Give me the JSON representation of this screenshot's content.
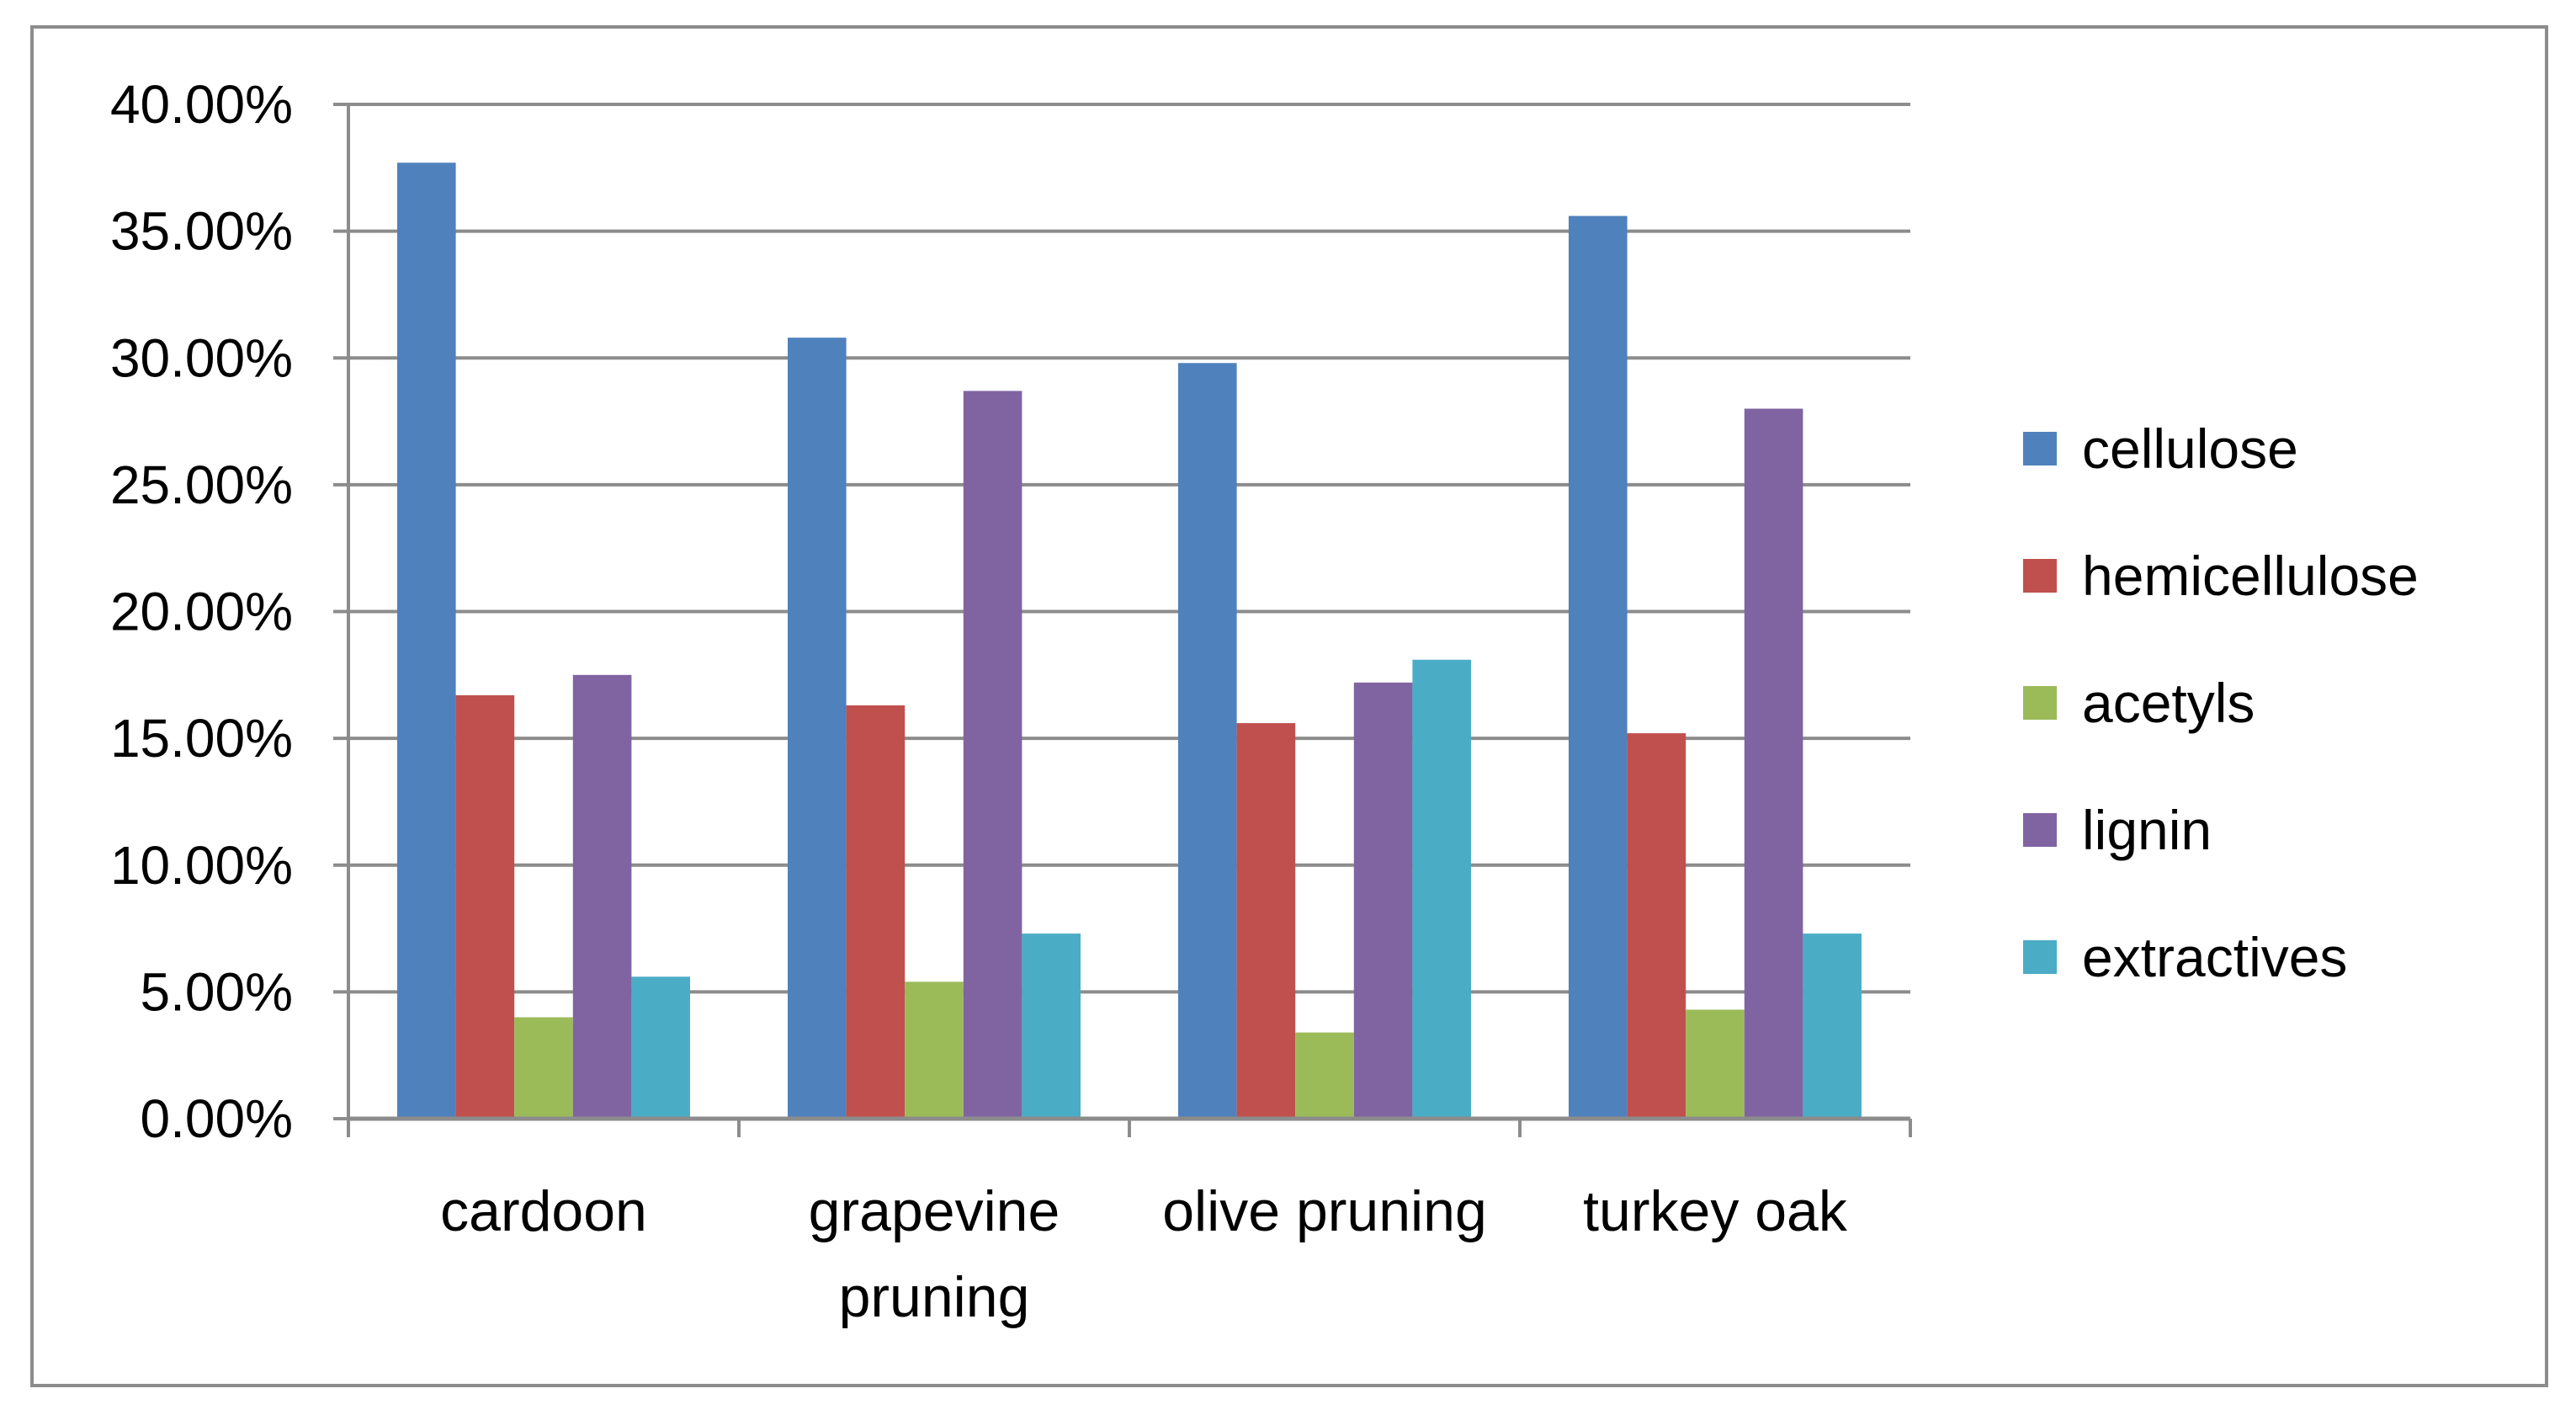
{
  "chart_data": {
    "type": "bar",
    "title": "",
    "xlabel": "",
    "ylabel": "",
    "ylim": [
      0,
      0.4
    ],
    "y_tick_step": 0.05,
    "y_tick_format": "percent_2dp",
    "y_ticks": [
      "0.00%",
      "5.00%",
      "10.00%",
      "15.00%",
      "20.00%",
      "25.00%",
      "30.00%",
      "35.00%",
      "40.00%"
    ],
    "grid": true,
    "legend_position": "right",
    "categories": [
      [
        "cardoon"
      ],
      [
        "grapevine",
        "pruning"
      ],
      [
        "olive pruning"
      ],
      [
        "turkey oak"
      ]
    ],
    "series": [
      {
        "name": "cellulose",
        "color": "#4F81BD",
        "values": [
          0.377,
          0.308,
          0.298,
          0.356
        ]
      },
      {
        "name": "hemicellulose",
        "color": "#C0504D",
        "values": [
          0.167,
          0.163,
          0.156,
          0.152
        ]
      },
      {
        "name": "acetyls",
        "color": "#9BBB59",
        "values": [
          0.04,
          0.054,
          0.034,
          0.043
        ]
      },
      {
        "name": "lignin",
        "color": "#8064A2",
        "values": [
          0.175,
          0.287,
          0.172,
          0.28
        ]
      },
      {
        "name": "extractives",
        "color": "#4BACC6",
        "values": [
          0.056,
          0.073,
          0.181,
          0.073
        ]
      }
    ],
    "colors": {
      "gridline": "#8C8C8C",
      "axis": "#8C8C8C",
      "frame_border": "#8C8C8C"
    }
  }
}
